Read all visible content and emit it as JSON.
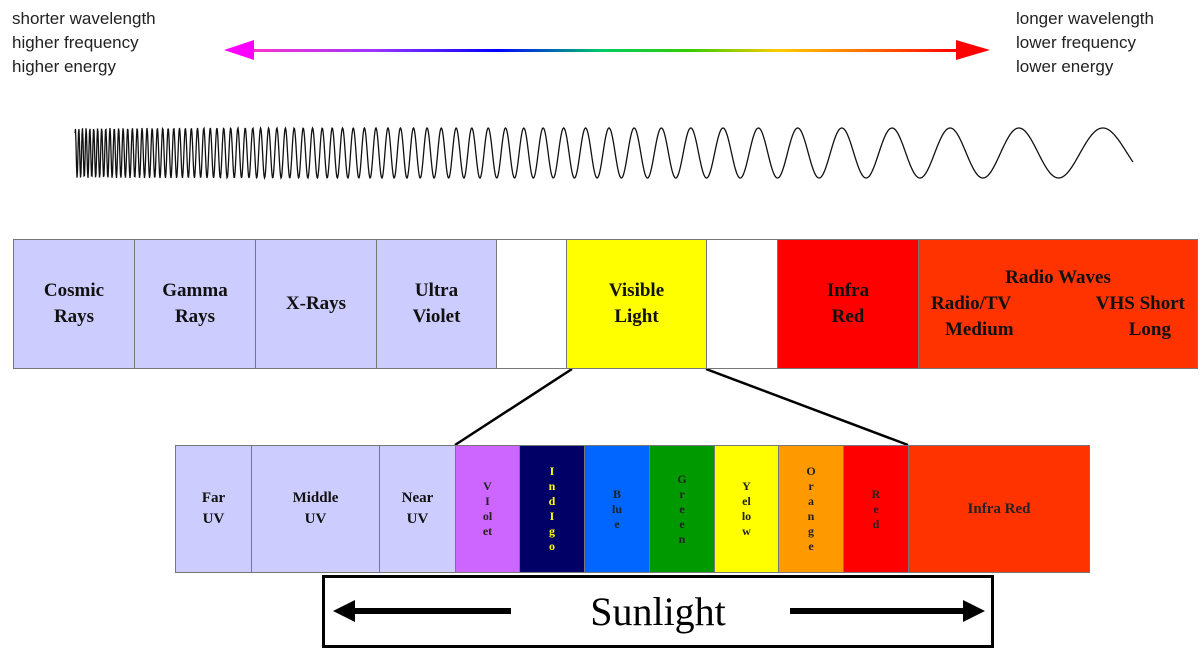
{
  "top_left": {
    "line1": "shorter wavelength",
    "line2": "higher frequency",
    "line3": "higher energy"
  },
  "top_right": {
    "line1": "longer wavelength",
    "line2": "lower frequency",
    "line3": "lower energy"
  },
  "arrow": {
    "left_color": "#ff00ff",
    "right_color": "#ff0000"
  },
  "spectrum": [
    {
      "label": "Cosmic\nRays",
      "color": "#ccccff"
    },
    {
      "label": "Gamma\nRays",
      "color": "#ccccff"
    },
    {
      "label": "X-Rays",
      "color": "#ccccff"
    },
    {
      "label": "Ultra\nViolet",
      "color": "#ccccff"
    },
    {
      "label": "",
      "color": "#ffffff"
    },
    {
      "label": "Visible\nLight",
      "color": "#ffff00"
    },
    {
      "label": "",
      "color": "#ffffff"
    },
    {
      "label": "Infra\nRed",
      "color": "#ff0000"
    },
    {
      "label": "Radio Waves",
      "color": "#ff3300"
    }
  ],
  "radio": {
    "title": "Radio Waves",
    "radio_tv": "Radio/TV",
    "vhs_short": "VHS Short",
    "medium": "Medium",
    "long": "Long"
  },
  "sunlight_bands": [
    {
      "label": "Far\nUV",
      "color": "#ccccff",
      "text_color": "#111111"
    },
    {
      "label": "Middle\nUV",
      "color": "#ccccff",
      "text_color": "#111111"
    },
    {
      "label": "Near\nUV",
      "color": "#ccccff",
      "text_color": "#111111"
    },
    {
      "label": "VIolet",
      "color": "#cc66ff",
      "text_color": "#222222"
    },
    {
      "label": "IndIgo",
      "color": "#000066",
      "text_color": "#ffff00"
    },
    {
      "label": "Blue",
      "color": "#0066ff",
      "text_color": "#222222"
    },
    {
      "label": "Green",
      "color": "#009900",
      "text_color": "#222222"
    },
    {
      "label": "Yellow",
      "color": "#ffff00",
      "text_color": "#222222"
    },
    {
      "label": "Orange",
      "color": "#ff9900",
      "text_color": "#222222"
    },
    {
      "label": "Red",
      "color": "#ff0000",
      "text_color": "#222222"
    },
    {
      "label": "Infra Red",
      "color": "#ff3300",
      "text_color": "#222222"
    }
  ],
  "sunlight": {
    "label": "Sunlight"
  }
}
